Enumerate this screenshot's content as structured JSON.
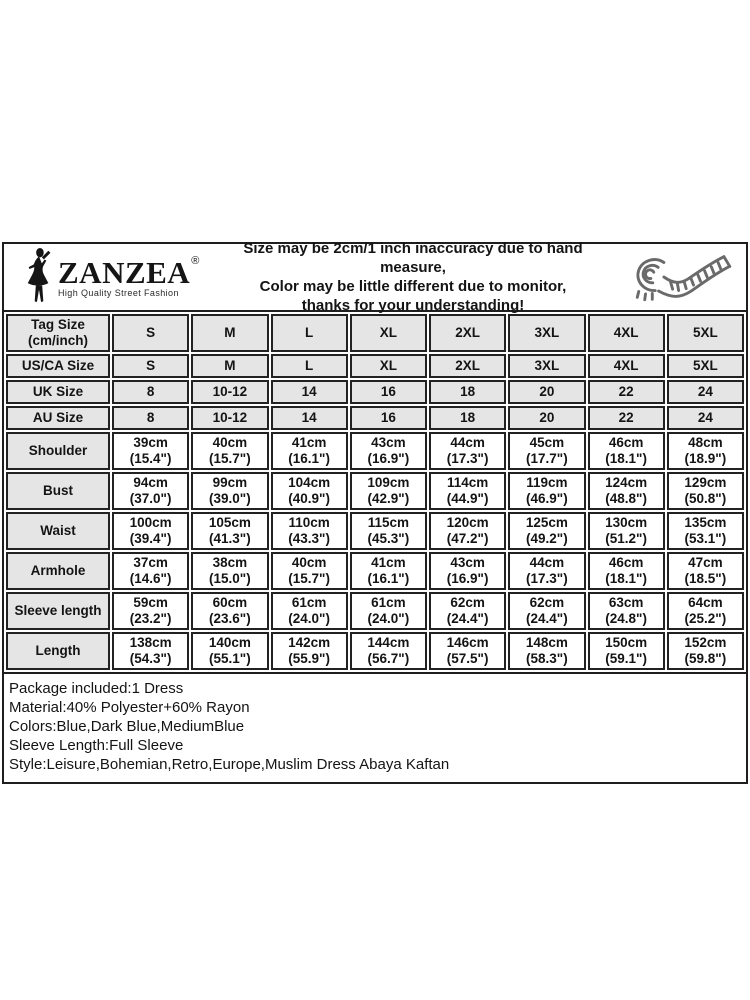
{
  "brand": {
    "name": "ZANZEA",
    "registered_mark": "®",
    "tagline": "High Quality Street Fashion"
  },
  "disclaimer": {
    "line1": "Size may be 2cm/1 inch inaccuracy due to hand measure,",
    "line2": "Color may be little different due to monitor,",
    "line3": "thanks for your understanding!"
  },
  "icons": {
    "logo_figure": "woman-silhouette-icon",
    "tape": "tape-measure-icon"
  },
  "colors": {
    "border": "#1e1e1e",
    "shaded_cell_bg": "#e5e5e5",
    "cell_bg": "#ffffff",
    "text": "#141414",
    "tape_stroke": "#6a6a6a"
  },
  "table": {
    "rows": [
      {
        "label": [
          "Tag Size",
          "(cm/inch)"
        ],
        "shaded": true,
        "values": [
          "S",
          "M",
          "L",
          "XL",
          "2XL",
          "3XL",
          "4XL",
          "5XL"
        ]
      },
      {
        "label": [
          "US/CA Size"
        ],
        "shaded": true,
        "values": [
          "S",
          "M",
          "L",
          "XL",
          "2XL",
          "3XL",
          "4XL",
          "5XL"
        ]
      },
      {
        "label": [
          "UK Size"
        ],
        "shaded": true,
        "values": [
          "8",
          "10-12",
          "14",
          "16",
          "18",
          "20",
          "22",
          "24"
        ]
      },
      {
        "label": [
          "AU Size"
        ],
        "shaded": true,
        "values": [
          "8",
          "10-12",
          "14",
          "16",
          "18",
          "20",
          "22",
          "24"
        ]
      },
      {
        "label": [
          "Shoulder"
        ],
        "shaded": false,
        "values": [
          [
            "39cm",
            "(15.4\")"
          ],
          [
            "40cm",
            "(15.7\")"
          ],
          [
            "41cm",
            "(16.1\")"
          ],
          [
            "43cm",
            "(16.9\")"
          ],
          [
            "44cm",
            "(17.3\")"
          ],
          [
            "45cm",
            "(17.7\")"
          ],
          [
            "46cm",
            "(18.1\")"
          ],
          [
            "48cm",
            "(18.9\")"
          ]
        ]
      },
      {
        "label": [
          "Bust"
        ],
        "shaded": false,
        "values": [
          [
            "94cm",
            "(37.0\")"
          ],
          [
            "99cm",
            "(39.0\")"
          ],
          [
            "104cm",
            "(40.9\")"
          ],
          [
            "109cm",
            "(42.9\")"
          ],
          [
            "114cm",
            "(44.9\")"
          ],
          [
            "119cm",
            "(46.9\")"
          ],
          [
            "124cm",
            "(48.8\")"
          ],
          [
            "129cm",
            "(50.8\")"
          ]
        ]
      },
      {
        "label": [
          "Waist"
        ],
        "shaded": false,
        "values": [
          [
            "100cm",
            "(39.4\")"
          ],
          [
            "105cm",
            "(41.3\")"
          ],
          [
            "110cm",
            "(43.3\")"
          ],
          [
            "115cm",
            "(45.3\")"
          ],
          [
            "120cm",
            "(47.2\")"
          ],
          [
            "125cm",
            "(49.2\")"
          ],
          [
            "130cm",
            "(51.2\")"
          ],
          [
            "135cm",
            "(53.1\")"
          ]
        ]
      },
      {
        "label": [
          "Armhole"
        ],
        "shaded": false,
        "values": [
          [
            "37cm",
            "(14.6\")"
          ],
          [
            "38cm",
            "(15.0\")"
          ],
          [
            "40cm",
            "(15.7\")"
          ],
          [
            "41cm",
            "(16.1\")"
          ],
          [
            "43cm",
            "(16.9\")"
          ],
          [
            "44cm",
            "(17.3\")"
          ],
          [
            "46cm",
            "(18.1\")"
          ],
          [
            "47cm",
            "(18.5\")"
          ]
        ]
      },
      {
        "label": [
          "Sleeve length"
        ],
        "shaded": false,
        "values": [
          [
            "59cm",
            "(23.2\")"
          ],
          [
            "60cm",
            "(23.6\")"
          ],
          [
            "61cm",
            "(24.0\")"
          ],
          [
            "61cm",
            "(24.0\")"
          ],
          [
            "62cm",
            "(24.4\")"
          ],
          [
            "62cm",
            "(24.4\")"
          ],
          [
            "63cm",
            "(24.8\")"
          ],
          [
            "64cm",
            "(25.2\")"
          ]
        ]
      },
      {
        "label": [
          "Length"
        ],
        "shaded": false,
        "values": [
          [
            "138cm",
            "(54.3\")"
          ],
          [
            "140cm",
            "(55.1\")"
          ],
          [
            "142cm",
            "(55.9\")"
          ],
          [
            "144cm",
            "(56.7\")"
          ],
          [
            "146cm",
            "(57.5\")"
          ],
          [
            "148cm",
            "(58.3\")"
          ],
          [
            "150cm",
            "(59.1\")"
          ],
          [
            "152cm",
            "(59.8\")"
          ]
        ]
      }
    ]
  },
  "details": {
    "lines": [
      "Package included:1 Dress",
      "Material:40% Polyester+60% Rayon",
      "Colors:Blue,Dark Blue,MediumBlue",
      "Sleeve Length:Full Sleeve",
      "Style:Leisure,Bohemian,Retro,Europe,Muslim Dress Abaya Kaftan"
    ]
  }
}
